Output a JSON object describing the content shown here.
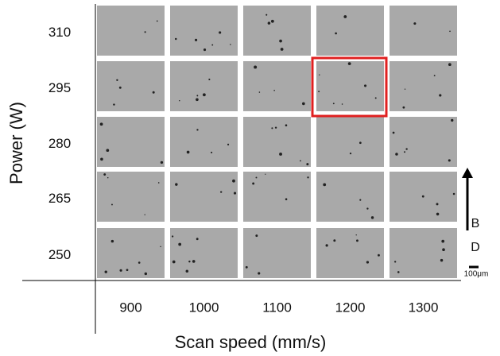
{
  "y_axis": {
    "label": "Power (W)",
    "ticks": [
      "310",
      "295",
      "280",
      "265",
      "250"
    ]
  },
  "x_axis": {
    "label": "Scan speed (mm/s)",
    "ticks": [
      "900",
      "1000",
      "1100",
      "1200",
      "1300"
    ]
  },
  "build_direction": {
    "letters": [
      "B",
      "D"
    ]
  },
  "scale_bar": {
    "label": "100μm"
  }
}
